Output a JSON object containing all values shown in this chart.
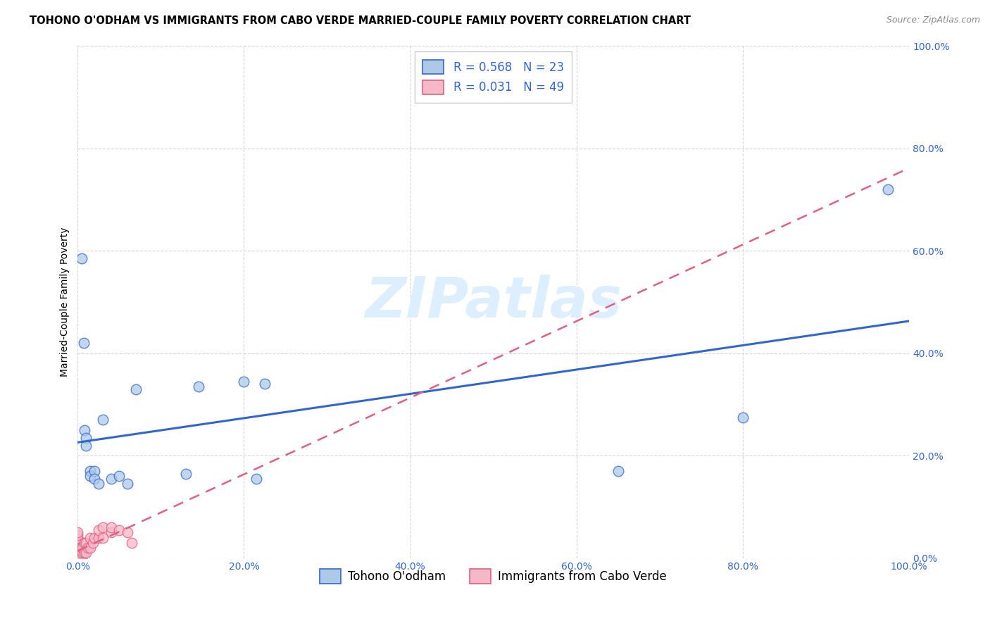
{
  "title": "TOHONO O'ODHAM VS IMMIGRANTS FROM CABO VERDE MARRIED-COUPLE FAMILY POVERTY CORRELATION CHART",
  "source": "Source: ZipAtlas.com",
  "ylabel": "Married-Couple Family Poverty",
  "series1_label": "Tohono O'odham",
  "series2_label": "Immigrants from Cabo Verde",
  "series1_R": 0.568,
  "series1_N": 23,
  "series2_R": 0.031,
  "series2_N": 49,
  "series1_color": "#aec9e8",
  "series2_color": "#f5b8c8",
  "series1_line_color": "#3366cc",
  "series2_line_color": "#e06080",
  "watermark_color": "#ddeeff",
  "xlim": [
    0,
    1
  ],
  "ylim": [
    0,
    1
  ],
  "xticks": [
    0.0,
    0.2,
    0.4,
    0.6,
    0.8,
    1.0
  ],
  "yticks": [
    0.0,
    0.2,
    0.4,
    0.6,
    0.8,
    1.0
  ],
  "xtick_labels": [
    "0.0%",
    "20.0%",
    "40.0%",
    "60.0%",
    "80.0%",
    "100.0%"
  ],
  "ytick_labels": [
    "0.0%",
    "20.0%",
    "40.0%",
    "60.0%",
    "80.0%",
    "100.0%"
  ],
  "series1_x": [
    0.005,
    0.007,
    0.008,
    0.01,
    0.01,
    0.015,
    0.015,
    0.02,
    0.02,
    0.025,
    0.03,
    0.04,
    0.05,
    0.06,
    0.07,
    0.13,
    0.145,
    0.2,
    0.215,
    0.225,
    0.65,
    0.8,
    0.975
  ],
  "series1_y": [
    0.585,
    0.42,
    0.25,
    0.235,
    0.22,
    0.17,
    0.16,
    0.17,
    0.155,
    0.145,
    0.27,
    0.155,
    0.16,
    0.145,
    0.33,
    0.165,
    0.335,
    0.345,
    0.155,
    0.34,
    0.17,
    0.275,
    0.72
  ],
  "series2_x": [
    0.0,
    0.0,
    0.0,
    0.0,
    0.0,
    0.0,
    0.0,
    0.0,
    0.0,
    0.0,
    0.0,
    0.0,
    0.0,
    0.0,
    0.0,
    0.0,
    0.0,
    0.0,
    0.0,
    0.0,
    0.0,
    0.0,
    0.003,
    0.003,
    0.003,
    0.004,
    0.004,
    0.005,
    0.005,
    0.006,
    0.006,
    0.008,
    0.008,
    0.01,
    0.01,
    0.012,
    0.015,
    0.015,
    0.018,
    0.02,
    0.025,
    0.025,
    0.03,
    0.03,
    0.04,
    0.04,
    0.05,
    0.06,
    0.065
  ],
  "series2_y": [
    0.0,
    0.0,
    0.0,
    0.0,
    0.0,
    0.0,
    0.0,
    0.005,
    0.005,
    0.005,
    0.01,
    0.01,
    0.01,
    0.015,
    0.015,
    0.02,
    0.025,
    0.03,
    0.035,
    0.04,
    0.045,
    0.05,
    0.0,
    0.01,
    0.02,
    0.0,
    0.01,
    0.0,
    0.02,
    0.01,
    0.02,
    0.01,
    0.03,
    0.01,
    0.03,
    0.02,
    0.02,
    0.04,
    0.03,
    0.04,
    0.04,
    0.055,
    0.04,
    0.06,
    0.05,
    0.06,
    0.055,
    0.05,
    0.03
  ],
  "background_color": "#ffffff",
  "grid_color": "#cccccc",
  "title_fontsize": 10.5,
  "axis_label_fontsize": 10,
  "tick_fontsize": 10,
  "tick_color": "#3366cc",
  "legend_text_color": "#3366cc"
}
